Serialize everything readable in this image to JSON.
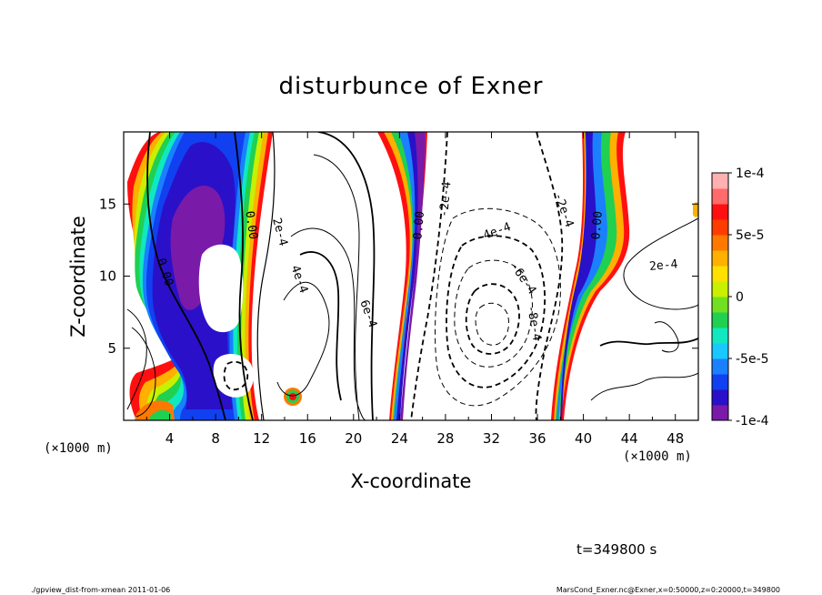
{
  "chart_data": {
    "type": "heatmap",
    "title": "disturbunce of Exner",
    "xlabel": "X-coordinate",
    "ylabel": "Z-coordinate",
    "x_unit_left": "(×1000 m)",
    "x_unit_right": "(×1000 m)",
    "xlim": [
      0,
      50
    ],
    "ylim": [
      0,
      20
    ],
    "x_ticks": [
      4,
      8,
      12,
      16,
      20,
      24,
      28,
      32,
      36,
      40,
      44,
      48
    ],
    "y_ticks": [
      5,
      10,
      15
    ],
    "colorbar": {
      "min": -0.0001,
      "max": 0.0001,
      "labels": [
        {
          "value": 0.0001,
          "text": "1e-4"
        },
        {
          "value": 5e-05,
          "text": "5e-5"
        },
        {
          "value": 0,
          "text": "0"
        },
        {
          "value": -5e-05,
          "text": "-5e-5"
        },
        {
          "value": -0.0001,
          "text": "-1e-4"
        }
      ],
      "colors": [
        "#7a1aa8",
        "#2a10c8",
        "#1040f0",
        "#1a80ff",
        "#18c8ff",
        "#10e8c0",
        "#20d050",
        "#70e020",
        "#c8f000",
        "#ffe000",
        "#ffb000",
        "#ff7800",
        "#ff3c00",
        "#ff1010",
        "#ff6a6a",
        "#ffb0b0"
      ]
    },
    "contour_labels": [
      {
        "text": "0.00",
        "x": 3.3,
        "z": 10.2,
        "angle": 72
      },
      {
        "text": "0.00",
        "x": 10.8,
        "z": 13.5,
        "angle": 82
      },
      {
        "text": "2e-4",
        "x": 13.3,
        "z": 13.0,
        "angle": 75
      },
      {
        "text": "4e-4",
        "x": 15.0,
        "z": 9.7,
        "angle": 70
      },
      {
        "text": "6e-4",
        "x": 21.0,
        "z": 7.3,
        "angle": 70
      },
      {
        "text": "0.00",
        "x": 26.0,
        "z": 13.5,
        "angle": -85
      },
      {
        "text": "-2e-4",
        "x": 28.3,
        "z": 15.3,
        "angle": -85
      },
      {
        "text": "-4e-4",
        "x": 32.3,
        "z": 12.8,
        "angle": -20
      },
      {
        "text": "-6e-4",
        "x": 34.5,
        "z": 9.7,
        "angle": 55
      },
      {
        "text": "-8e-4",
        "x": 35.4,
        "z": 6.7,
        "angle": 80
      },
      {
        "text": "-2e-4",
        "x": 38.0,
        "z": 14.5,
        "angle": 70
      },
      {
        "text": "0.00",
        "x": 41.5,
        "z": 13.5,
        "angle": -85
      },
      {
        "text": "2e-4",
        "x": 47.0,
        "z": 10.5,
        "angle": -5
      }
    ]
  },
  "footer": {
    "time": "t=349800  s",
    "left_note": "./gpview_dist-from-xmean   2011-01-06",
    "right_note": "MarsCond_Exner.nc@Exner,x=0:50000,z=0:20000,t=349800"
  }
}
